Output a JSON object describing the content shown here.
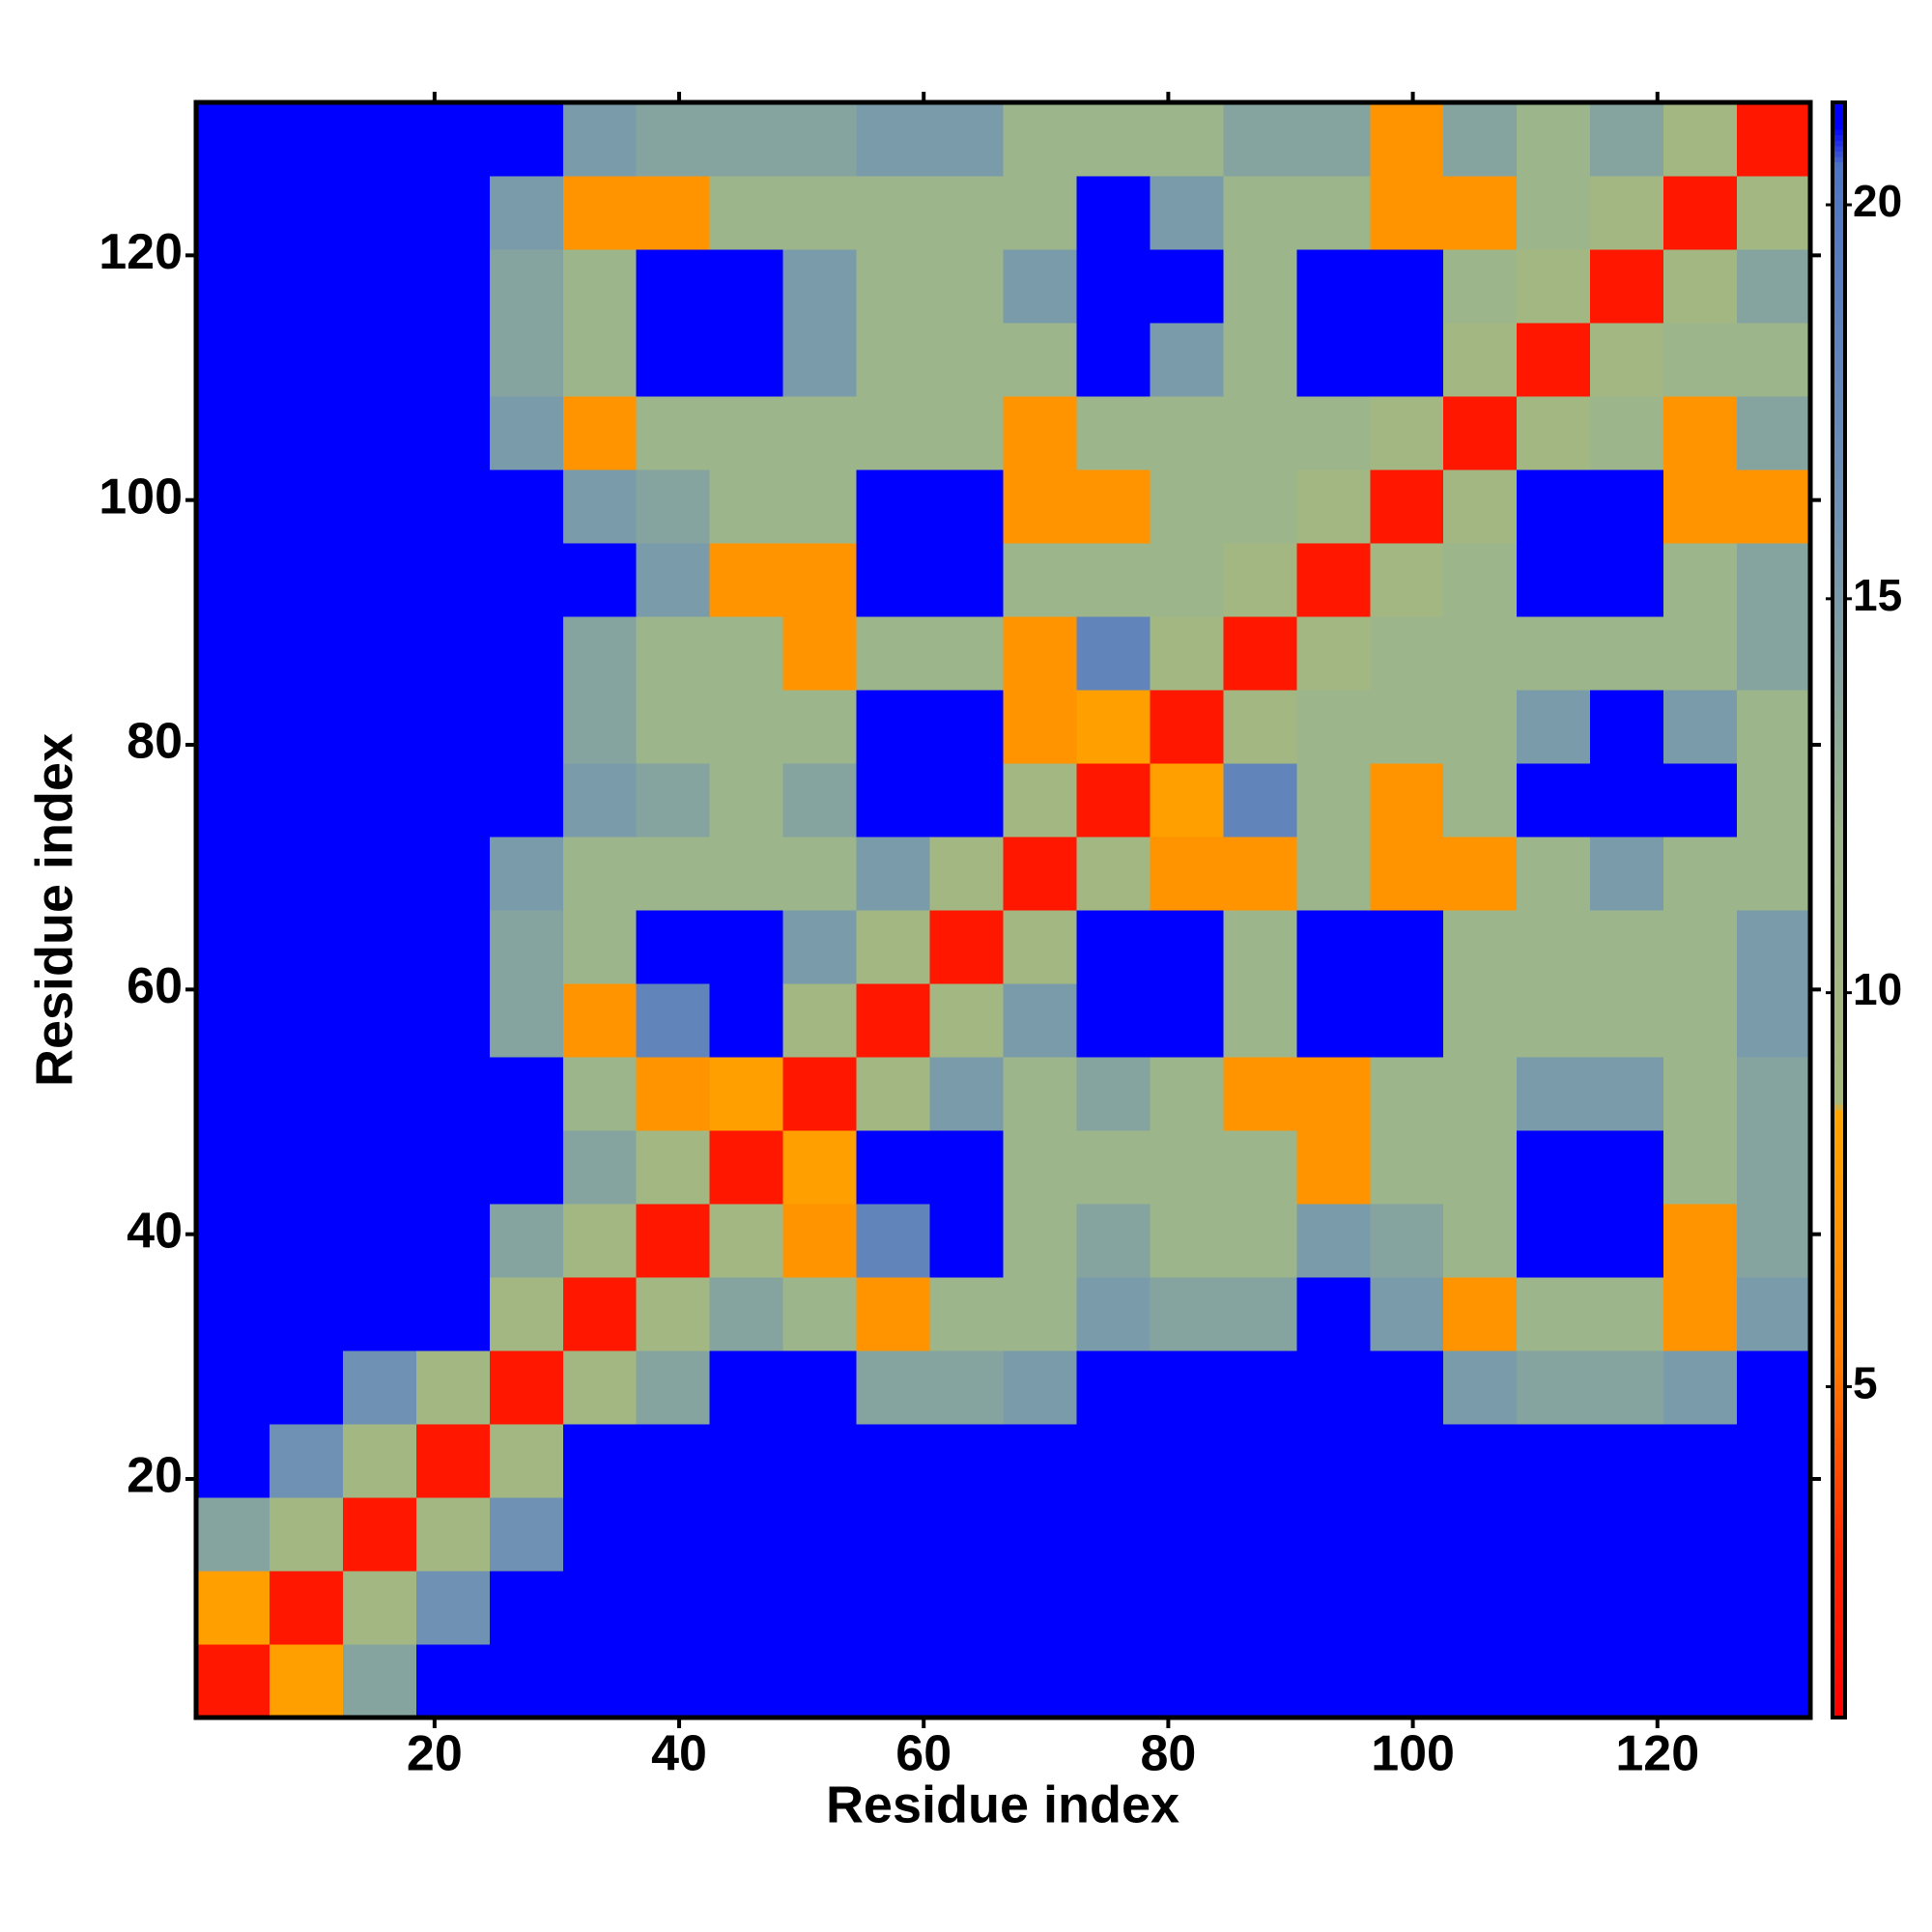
{
  "chart_data": {
    "type": "heatmap",
    "xlabel": "Residue index",
    "ylabel": "Residue index",
    "x": [
      3.5,
      9.5,
      15.5,
      21.5,
      27.5,
      33.5,
      39.5,
      45.5,
      51.5,
      57.5,
      63.5,
      69.5,
      75.5,
      81.5,
      87.5,
      93.5,
      99.5,
      105.5,
      111.5,
      117.5,
      123.5,
      129.5
    ],
    "y": [
      3.5,
      9.5,
      15.5,
      21.5,
      27.5,
      33.5,
      39.5,
      45.5,
      51.5,
      57.5,
      63.5,
      69.5,
      75.5,
      81.5,
      87.5,
      93.5,
      99.5,
      105.5,
      111.5,
      117.5,
      123.5,
      129.5
    ],
    "z": [
      [
        2,
        8,
        14,
        21,
        21,
        21,
        21,
        21,
        21,
        21,
        21,
        21,
        21,
        21,
        21,
        21,
        21,
        21,
        21,
        21,
        21,
        21
      ],
      [
        8,
        2,
        10,
        16,
        21,
        21,
        21,
        21,
        21,
        21,
        21,
        21,
        21,
        21,
        21,
        21,
        21,
        21,
        21,
        21,
        21,
        21
      ],
      [
        14,
        10,
        2,
        10,
        16,
        21,
        21,
        21,
        21,
        21,
        21,
        21,
        21,
        21,
        21,
        21,
        21,
        21,
        21,
        21,
        21,
        21
      ],
      [
        21,
        16,
        10,
        2,
        10,
        21,
        21,
        21,
        21,
        21,
        21,
        21,
        21,
        21,
        21,
        21,
        21,
        21,
        21,
        21,
        21,
        21
      ],
      [
        21,
        21,
        16,
        10,
        2,
        10,
        14,
        21,
        21,
        14,
        14,
        15,
        21,
        21,
        21,
        21,
        21,
        15,
        14,
        14,
        15,
        21
      ],
      [
        21,
        21,
        21,
        21,
        10,
        2,
        10,
        14,
        12,
        7,
        12,
        12,
        15,
        14,
        14,
        21,
        15,
        7,
        12,
        12,
        7,
        15
      ],
      [
        21,
        21,
        21,
        21,
        14,
        10,
        2,
        10,
        7,
        18,
        21,
        12,
        14,
        12,
        12,
        15,
        14,
        12,
        21,
        21,
        7,
        14
      ],
      [
        21,
        21,
        21,
        21,
        21,
        14,
        10,
        2,
        8,
        21,
        21,
        12,
        12,
        12,
        12,
        7,
        12,
        12,
        21,
        21,
        12,
        14
      ],
      [
        21,
        21,
        21,
        21,
        21,
        12,
        7,
        8,
        2,
        10,
        15,
        12,
        14,
        12,
        7,
        7,
        12,
        12,
        15,
        15,
        12,
        14
      ],
      [
        21,
        21,
        21,
        21,
        14,
        7,
        18,
        21,
        10,
        2,
        10,
        15,
        21,
        21,
        12,
        21,
        21,
        12,
        12,
        12,
        12,
        15
      ],
      [
        21,
        21,
        21,
        21,
        14,
        12,
        21,
        21,
        15,
        10,
        2,
        10,
        21,
        21,
        12,
        21,
        21,
        12,
        12,
        12,
        12,
        15
      ],
      [
        21,
        21,
        21,
        21,
        15,
        12,
        12,
        12,
        12,
        15,
        10,
        2,
        10,
        7,
        7,
        12,
        7,
        7,
        12,
        15,
        12,
        12
      ],
      [
        21,
        21,
        21,
        21,
        21,
        15,
        14,
        12,
        14,
        21,
        21,
        10,
        2,
        8,
        18,
        12,
        7,
        12,
        21,
        21,
        21,
        12
      ],
      [
        21,
        21,
        21,
        21,
        21,
        14,
        12,
        12,
        12,
        21,
        21,
        7,
        8,
        2,
        10,
        12,
        12,
        12,
        15,
        21,
        15,
        12
      ],
      [
        21,
        21,
        21,
        21,
        21,
        14,
        12,
        12,
        7,
        12,
        12,
        7,
        18,
        10,
        2,
        10,
        12,
        12,
        12,
        12,
        12,
        14
      ],
      [
        21,
        21,
        21,
        21,
        21,
        21,
        15,
        7,
        7,
        21,
        21,
        12,
        12,
        12,
        10,
        2,
        10,
        12,
        21,
        21,
        12,
        14
      ],
      [
        21,
        21,
        21,
        21,
        21,
        15,
        14,
        12,
        12,
        21,
        21,
        7,
        7,
        12,
        12,
        10,
        2,
        10,
        21,
        21,
        7,
        7
      ],
      [
        21,
        21,
        21,
        21,
        15,
        7,
        12,
        12,
        12,
        12,
        12,
        7,
        12,
        12,
        12,
        12,
        10,
        2,
        10,
        12,
        7,
        14
      ],
      [
        21,
        21,
        21,
        21,
        14,
        12,
        21,
        21,
        15,
        12,
        12,
        12,
        21,
        15,
        12,
        21,
        21,
        10,
        2,
        10,
        12,
        12
      ],
      [
        21,
        21,
        21,
        21,
        14,
        12,
        21,
        21,
        15,
        12,
        12,
        15,
        21,
        21,
        12,
        21,
        21,
        12,
        10,
        2,
        10,
        14
      ],
      [
        21,
        21,
        21,
        21,
        15,
        7,
        7,
        12,
        12,
        12,
        12,
        12,
        21,
        15,
        12,
        12,
        7,
        7,
        12,
        10,
        2,
        10
      ],
      [
        21,
        21,
        21,
        21,
        21,
        15,
        14,
        14,
        14,
        15,
        15,
        12,
        12,
        12,
        14,
        14,
        7,
        14,
        12,
        14,
        10,
        2
      ]
    ],
    "xlim": [
      0.5,
      132.5
    ],
    "ylim": [
      0.5,
      132.5
    ],
    "xticks": [
      20,
      40,
      60,
      80,
      100,
      120
    ],
    "yticks": [
      20,
      40,
      60,
      80,
      100,
      120
    ],
    "zlim": [
      0.8,
      21.3
    ],
    "zticks": [
      5,
      10,
      15,
      20
    ],
    "colorscale": [
      [
        0.8,
        "#ff0000"
      ],
      [
        3,
        "#ff2a00"
      ],
      [
        5.5,
        "#ff8000"
      ],
      [
        8.5,
        "#ffa500"
      ],
      [
        8.6,
        "#a8b87c"
      ],
      [
        12,
        "#9cb58a"
      ],
      [
        16,
        "#6f92b4"
      ],
      [
        20.5,
        "#4f74c4"
      ],
      [
        21,
        "#0000ff"
      ]
    ]
  }
}
